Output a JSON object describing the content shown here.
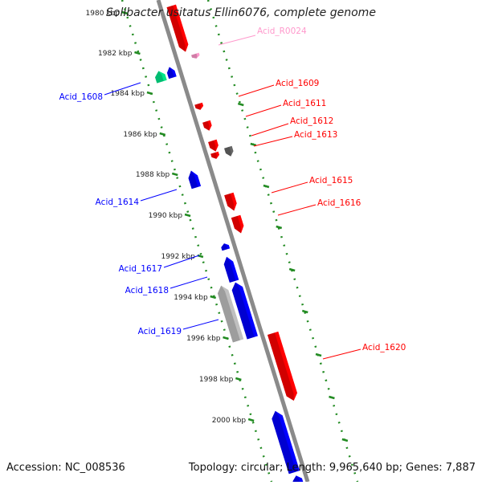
{
  "header": {
    "title": "Solibacter usitatus Ellin6076, complete genome"
  },
  "footer": {
    "accession": "Accession: NC_008536",
    "summary": "Topology: circular; Length: 9,965,640 bp; Genes: 7,887"
  },
  "colors": {
    "forward": "#ff0000",
    "reverse": "#0000ff",
    "rna": "#ff99cc",
    "pseudo": "#666666",
    "light": "#c0c0c0",
    "special": "#00e68a",
    "backbone": "#8a8a8a",
    "ticks": "#228b22"
  },
  "ruler": {
    "labels": [
      "1980 kbp",
      "1982 kbp",
      "1984 kbp",
      "1986 kbp",
      "1988 kbp",
      "1990 kbp",
      "1992 kbp",
      "1994 kbp",
      "1996 kbp",
      "1998 kbp",
      "2000 kbp"
    ]
  },
  "gene_labels": {
    "right": [
      "Acid_R0024",
      "Acid_1609",
      "Acid_1611",
      "Acid_1612",
      "Acid_1613",
      "Acid_1615",
      "Acid_1616",
      "Acid_1620"
    ],
    "left": [
      "Acid_1608",
      "Acid_1614",
      "Acid_1617",
      "Acid_1618",
      "Acid_1619"
    ]
  }
}
